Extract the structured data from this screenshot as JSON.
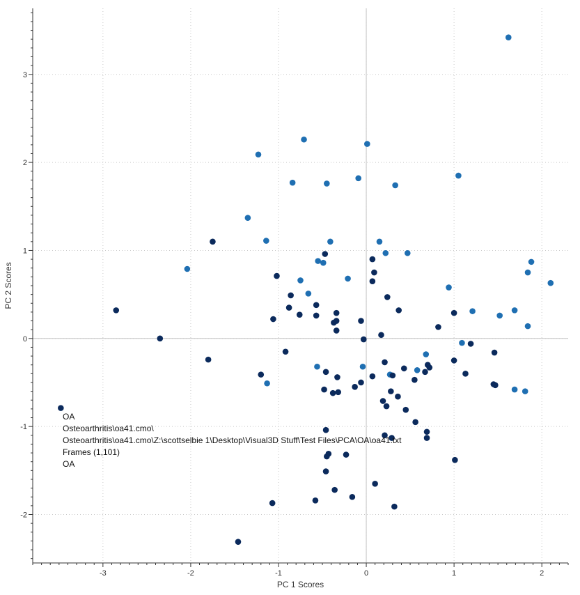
{
  "chart_data": {
    "type": "scatter",
    "xlabel": "PC 1 Scores",
    "ylabel": "PC 2 Scores",
    "xlim": [
      -3.8,
      2.3
    ],
    "ylim": [
      -2.55,
      3.75
    ],
    "x_ticks": [
      -3,
      -2,
      -1,
      0,
      1,
      2
    ],
    "y_ticks": [
      -2,
      -1,
      0,
      1,
      2,
      3
    ],
    "grid": true,
    "grid_style": "dotted",
    "zero_lines": true,
    "annotation_lines": [
      "OA",
      "Osteoarthritis\\oa41.cmo\\",
      "Osteoarthritis\\oa41.cmo\\Z:\\scottselbie 1\\Desktop\\Visual3D Stuff\\Test Files\\PCA\\OA\\oa41.txt",
      "Frames (1,101)",
      "OA"
    ],
    "series": [
      {
        "color": "#1f6fb2",
        "points": [
          [
            1.62,
            3.42
          ],
          [
            -0.71,
            2.26
          ],
          [
            0.01,
            2.21
          ],
          [
            -1.23,
            2.09
          ],
          [
            -0.84,
            1.77
          ],
          [
            -0.45,
            1.76
          ],
          [
            -0.09,
            1.82
          ],
          [
            0.33,
            1.74
          ],
          [
            1.05,
            1.85
          ],
          [
            -1.35,
            1.37
          ],
          [
            -1.14,
            1.11
          ],
          [
            -0.41,
            1.1
          ],
          [
            0.15,
            1.1
          ],
          [
            0.22,
            0.97
          ],
          [
            0.47,
            0.97
          ],
          [
            -2.04,
            0.79
          ],
          [
            -0.55,
            0.88
          ],
          [
            -0.49,
            0.86
          ],
          [
            -0.75,
            0.66
          ],
          [
            -0.66,
            0.51
          ],
          [
            -0.21,
            0.68
          ],
          [
            0.94,
            0.58
          ],
          [
            1.88,
            0.87
          ],
          [
            1.84,
            0.75
          ],
          [
            2.1,
            0.63
          ],
          [
            1.21,
            0.31
          ],
          [
            1.69,
            0.32
          ],
          [
            1.52,
            0.26
          ],
          [
            1.84,
            0.14
          ],
          [
            1.09,
            -0.05
          ],
          [
            0.68,
            -0.18
          ],
          [
            -0.56,
            -0.32
          ],
          [
            -0.04,
            -0.32
          ],
          [
            0.58,
            -0.36
          ],
          [
            -1.13,
            -0.51
          ],
          [
            1.69,
            -0.58
          ],
          [
            1.81,
            -0.6
          ],
          [
            0.27,
            -0.41
          ]
        ]
      },
      {
        "color": "#0b2a5c",
        "points": [
          [
            -1.75,
            1.1
          ],
          [
            -0.47,
            0.96
          ],
          [
            0.07,
            0.9
          ],
          [
            0.09,
            0.75
          ],
          [
            -1.02,
            0.71
          ],
          [
            0.07,
            0.65
          ],
          [
            -0.86,
            0.49
          ],
          [
            0.24,
            0.47
          ],
          [
            -0.57,
            0.38
          ],
          [
            -0.88,
            0.35
          ],
          [
            -2.85,
            0.32
          ],
          [
            0.37,
            0.32
          ],
          [
            -0.34,
            0.29
          ],
          [
            -0.76,
            0.27
          ],
          [
            -0.57,
            0.26
          ],
          [
            1.0,
            0.29
          ],
          [
            -1.06,
            0.22
          ],
          [
            -0.34,
            0.2
          ],
          [
            -0.37,
            0.18
          ],
          [
            -0.06,
            0.2
          ],
          [
            -0.34,
            0.09
          ],
          [
            0.82,
            0.13
          ],
          [
            0.17,
            0.04
          ],
          [
            -2.35,
            0.0
          ],
          [
            -0.03,
            -0.01
          ],
          [
            1.19,
            -0.06
          ],
          [
            -0.92,
            -0.15
          ],
          [
            1.46,
            -0.16
          ],
          [
            -1.8,
            -0.24
          ],
          [
            0.21,
            -0.27
          ],
          [
            1.0,
            -0.25
          ],
          [
            0.7,
            -0.3
          ],
          [
            -0.46,
            -0.38
          ],
          [
            0.43,
            -0.34
          ],
          [
            0.72,
            -0.33
          ],
          [
            0.67,
            -0.38
          ],
          [
            -1.2,
            -0.41
          ],
          [
            0.3,
            -0.42
          ],
          [
            0.07,
            -0.43
          ],
          [
            -0.33,
            -0.44
          ],
          [
            1.13,
            -0.4
          ],
          [
            0.55,
            -0.47
          ],
          [
            -0.06,
            -0.5
          ],
          [
            -0.13,
            -0.55
          ],
          [
            -0.48,
            -0.58
          ],
          [
            0.28,
            -0.6
          ],
          [
            -0.38,
            -0.62
          ],
          [
            -0.32,
            -0.61
          ],
          [
            0.36,
            -0.66
          ],
          [
            1.45,
            -0.52
          ],
          [
            1.47,
            -0.53
          ],
          [
            0.19,
            -0.71
          ],
          [
            0.23,
            -0.77
          ],
          [
            0.45,
            -0.81
          ],
          [
            -3.48,
            -0.79
          ],
          [
            0.56,
            -0.95
          ],
          [
            -0.46,
            -1.04
          ],
          [
            0.69,
            -1.06
          ],
          [
            0.21,
            -1.1
          ],
          [
            0.29,
            -1.13
          ],
          [
            0.69,
            -1.13
          ],
          [
            -0.43,
            -1.31
          ],
          [
            -0.45,
            -1.34
          ],
          [
            -0.23,
            -1.32
          ],
          [
            1.01,
            -1.38
          ],
          [
            -0.46,
            -1.51
          ],
          [
            0.1,
            -1.65
          ],
          [
            -0.36,
            -1.72
          ],
          [
            -0.16,
            -1.8
          ],
          [
            -1.07,
            -1.87
          ],
          [
            -0.58,
            -1.84
          ],
          [
            0.32,
            -1.91
          ],
          [
            -1.46,
            -2.31
          ]
        ]
      }
    ]
  }
}
